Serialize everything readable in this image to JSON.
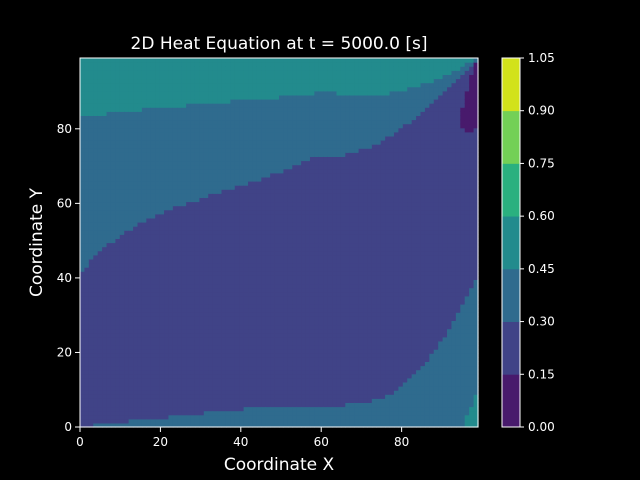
{
  "chart_data": {
    "type": "heatmap",
    "subtype": "filled-contour",
    "title": "2D Heat Equation at t = 5000.0 [s]",
    "xlabel": "Coordinate X",
    "ylabel": "Coordinate Y",
    "xlim": [
      0,
      99
    ],
    "ylim": [
      0,
      99
    ],
    "x_ticks": [
      0,
      20,
      40,
      60,
      80
    ],
    "y_ticks": [
      0,
      20,
      40,
      60,
      80
    ],
    "colormap": "viridis",
    "colorbar": {
      "levels": [
        0.0,
        0.15,
        0.3,
        0.45,
        0.6,
        0.75,
        0.9,
        1.05
      ],
      "tick_labels": [
        "0.00",
        "0.15",
        "0.30",
        "0.45",
        "0.60",
        "0.75",
        "0.90",
        "1.05"
      ],
      "colors": [
        "#481a6c",
        "#404387",
        "#2f6b8e",
        "#228b8d",
        "#2ab07f",
        "#73d056",
        "#d2e21b"
      ]
    },
    "background": "#000000",
    "foreground": "#ffffff",
    "grid": false,
    "legend": "colorbar-right"
  }
}
